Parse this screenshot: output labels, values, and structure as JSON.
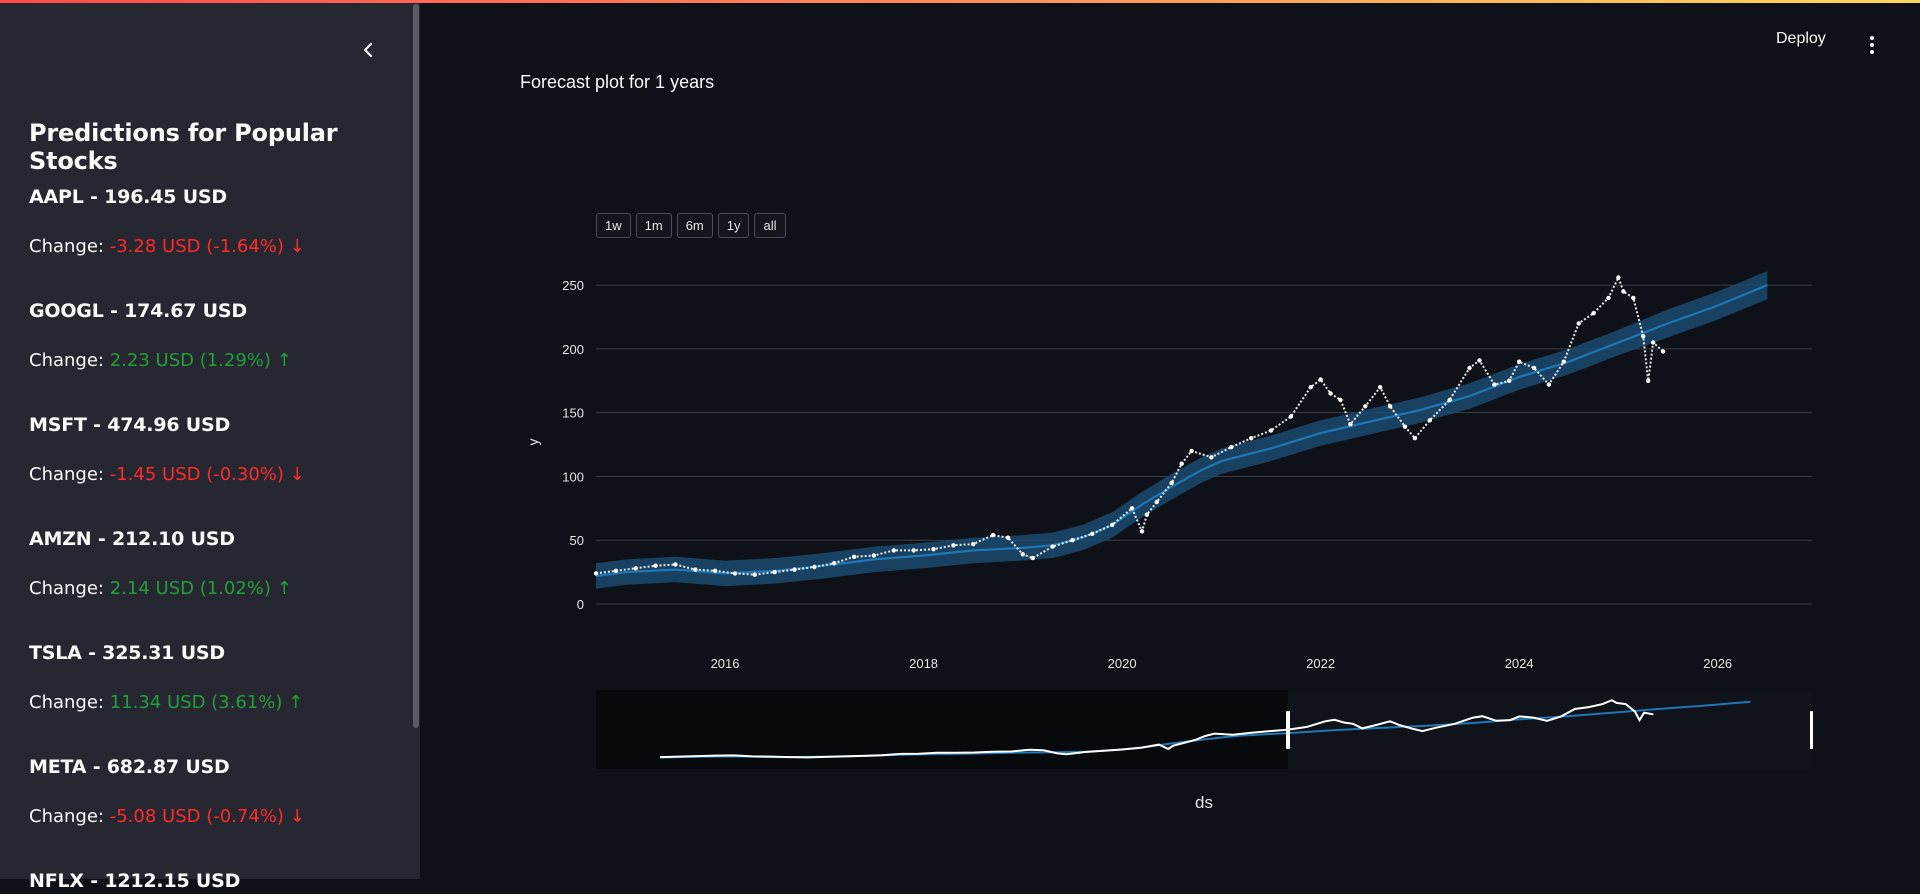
{
  "sidebar": {
    "title": "Predictions for Popular Stocks",
    "change_label": "Change:",
    "stocks": [
      {
        "header": "AAPL - 196.45 USD",
        "change": "-3.28 USD (-1.64%) ↓",
        "direction": "down"
      },
      {
        "header": "GOOGL - 174.67 USD",
        "change": "2.23 USD (1.29%) ↑",
        "direction": "up"
      },
      {
        "header": "MSFT - 474.96 USD",
        "change": "-1.45 USD (-0.30%) ↓",
        "direction": "down"
      },
      {
        "header": "AMZN - 212.10 USD",
        "change": "2.14 USD (1.02%) ↑",
        "direction": "up"
      },
      {
        "header": "TSLA - 325.31 USD",
        "change": "11.34 USD (3.61%) ↑",
        "direction": "up"
      },
      {
        "header": "META - 682.87 USD",
        "change": "-5.08 USD (-0.74%) ↓",
        "direction": "down"
      },
      {
        "header": "NFLX - 1212.15 USD",
        "change": "",
        "direction": ""
      }
    ]
  },
  "header": {
    "deploy_label": "Deploy"
  },
  "main": {
    "plot_title": "Forecast plot for 1 years",
    "range_buttons": [
      "1w",
      "1m",
      "6m",
      "1y",
      "all"
    ]
  },
  "colors": {
    "negative": "#ff2b2b",
    "positive": "#21a03a",
    "forecast_line": "#1f77b4",
    "forecast_band": "#1b4a6e",
    "actual_points": "#ffffff"
  },
  "chart_data": {
    "type": "line",
    "title": "",
    "xlabel": "ds",
    "ylabel": "y",
    "xlim": [
      2014.7,
      2026.95
    ],
    "ylim": [
      0,
      265
    ],
    "x_ticks": [
      "2016",
      "2018",
      "2020",
      "2022",
      "2024",
      "2026"
    ],
    "x_tick_values": [
      2016,
      2018,
      2020,
      2022,
      2024,
      2026
    ],
    "y_ticks": [
      "0",
      "50",
      "100",
      "150",
      "200",
      "250"
    ],
    "y_tick_values": [
      0,
      50,
      100,
      150,
      200,
      250
    ],
    "grid": "horizontal",
    "range_slider": true,
    "series": [
      {
        "kind": "forecast",
        "x": [
          2014.7,
          2015.0,
          2015.5,
          2016.0,
          2016.5,
          2017.0,
          2017.5,
          2018.0,
          2018.5,
          2019.0,
          2019.3,
          2019.6,
          2019.9,
          2020.2,
          2020.5,
          2020.8,
          2021.0,
          2021.5,
          2022.0,
          2022.5,
          2023.0,
          2023.5,
          2024.0,
          2024.5,
          2025.0,
          2025.5,
          2026.0,
          2026.5
        ],
        "values": [
          22,
          25,
          27,
          24,
          26,
          30,
          35,
          38,
          42,
          44,
          46,
          52,
          62,
          78,
          92,
          105,
          112,
          122,
          134,
          143,
          152,
          163,
          178,
          190,
          205,
          220,
          234,
          250
        ]
      },
      {
        "kind": "forecast_lower",
        "x": [
          2014.7,
          2015.0,
          2015.5,
          2016.0,
          2016.5,
          2017.0,
          2017.5,
          2018.0,
          2018.5,
          2019.0,
          2019.3,
          2019.6,
          2019.9,
          2020.2,
          2020.5,
          2020.8,
          2021.0,
          2021.5,
          2022.0,
          2022.5,
          2023.0,
          2023.5,
          2024.0,
          2024.5,
          2025.0,
          2025.5,
          2026.0,
          2026.5
        ],
        "values": [
          12,
          15,
          17,
          14,
          16,
          20,
          25,
          28,
          32,
          34,
          36,
          42,
          52,
          68,
          82,
          95,
          102,
          112,
          124,
          133,
          142,
          153,
          168,
          180,
          195,
          209,
          223,
          239
        ]
      },
      {
        "kind": "forecast_upper",
        "x": [
          2014.7,
          2015.0,
          2015.5,
          2016.0,
          2016.5,
          2017.0,
          2017.5,
          2018.0,
          2018.5,
          2019.0,
          2019.3,
          2019.6,
          2019.9,
          2020.2,
          2020.5,
          2020.8,
          2021.0,
          2021.5,
          2022.0,
          2022.5,
          2023.0,
          2023.5,
          2024.0,
          2024.5,
          2025.0,
          2025.5,
          2026.0,
          2026.5
        ],
        "values": [
          32,
          35,
          37,
          34,
          36,
          40,
          45,
          48,
          52,
          54,
          56,
          62,
          72,
          88,
          102,
          115,
          122,
          132,
          144,
          153,
          162,
          173,
          188,
          200,
          215,
          231,
          245,
          261
        ]
      },
      {
        "kind": "actual",
        "x": [
          2014.7,
          2014.9,
          2015.1,
          2015.3,
          2015.5,
          2015.7,
          2015.9,
          2016.1,
          2016.3,
          2016.5,
          2016.7,
          2016.9,
          2017.1,
          2017.3,
          2017.5,
          2017.7,
          2017.9,
          2018.1,
          2018.3,
          2018.5,
          2018.7,
          2018.85,
          2019.0,
          2019.1,
          2019.3,
          2019.5,
          2019.7,
          2019.9,
          2020.1,
          2020.2,
          2020.25,
          2020.35,
          2020.5,
          2020.6,
          2020.7,
          2020.9,
          2021.1,
          2021.3,
          2021.5,
          2021.7,
          2021.9,
          2022.0,
          2022.1,
          2022.2,
          2022.3,
          2022.45,
          2022.6,
          2022.7,
          2022.85,
          2022.95,
          2023.1,
          2023.3,
          2023.5,
          2023.6,
          2023.75,
          2023.9,
          2024.0,
          2024.15,
          2024.3,
          2024.45,
          2024.6,
          2024.75,
          2024.9,
          2025.0,
          2025.05,
          2025.15,
          2025.25,
          2025.3,
          2025.35,
          2025.45
        ],
        "values": [
          24,
          26,
          28,
          30,
          31,
          27,
          26,
          24,
          23,
          25,
          27,
          29,
          32,
          37,
          38,
          42,
          42,
          43,
          46,
          47,
          54,
          52,
          39,
          36,
          45,
          50,
          55,
          62,
          75,
          57,
          70,
          80,
          95,
          110,
          120,
          115,
          123,
          130,
          136,
          147,
          170,
          176,
          165,
          160,
          141,
          155,
          170,
          155,
          139,
          130,
          144,
          160,
          185,
          191,
          172,
          175,
          190,
          185,
          172,
          190,
          220,
          228,
          240,
          256,
          245,
          240,
          210,
          175,
          205,
          198
        ]
      }
    ]
  }
}
